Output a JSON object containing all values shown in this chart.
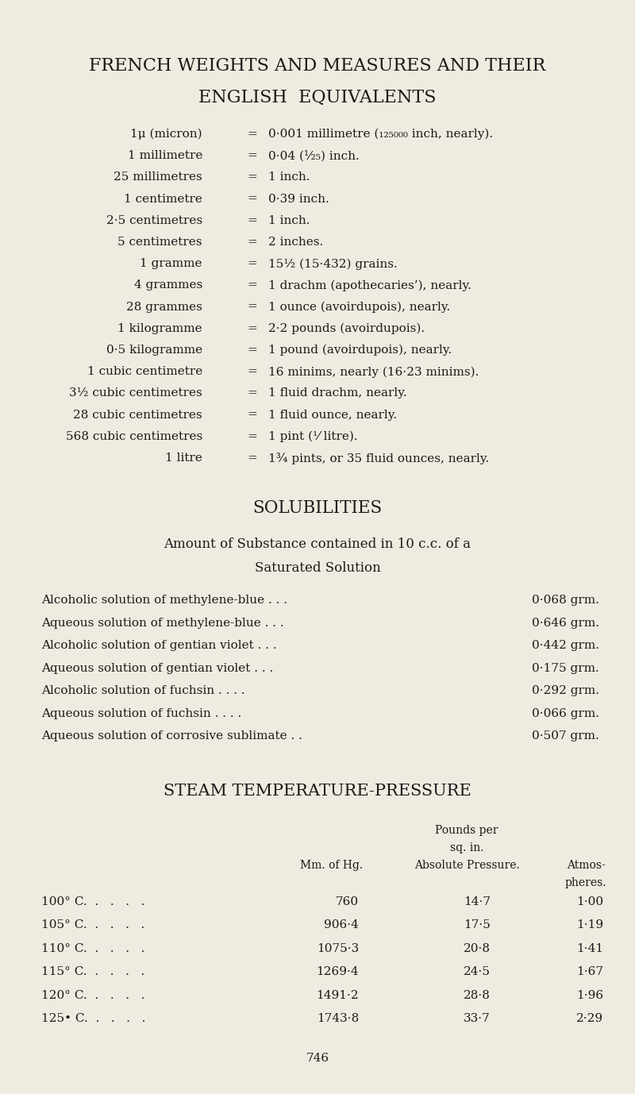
{
  "bg_color": "#f0ebe0",
  "text_color": "#1a1a1a",
  "title1": "FRENCH WEIGHTS AND MEASURES AND THEIR",
  "title2": "ENGLISH  EQUIVALENTS",
  "measures": [
    [
      "1μ (micron)",
      "0·001 millimetre (₁₂₅₀₀₀ inch, nearly)."
    ],
    [
      "1 millimetre",
      "0·04 (¹⁄₂₅) inch."
    ],
    [
      "25 millimetres",
      "1 inch."
    ],
    [
      "1 centimetre",
      "0·39 inch."
    ],
    [
      "2·5 centimetres",
      "1 inch."
    ],
    [
      "5 centimetres",
      "2 inches."
    ],
    [
      "1 gramme",
      "15½ (15·432) grains."
    ],
    [
      "4 grammes",
      "1 drachm (apothecaries’), nearly."
    ],
    [
      "28 grammes",
      "1 ounce (avoirdupois), nearly."
    ],
    [
      "1 kilogramme",
      "2·2 pounds (avoirdupois)."
    ],
    [
      "0·5 kilogramme",
      "1 pound (avoirdupois), nearly."
    ],
    [
      "1 cubic centimetre",
      "16 minims, nearly (16·23 minims)."
    ],
    [
      "3½ cubic centimetres",
      "1 fluid drachm, nearly."
    ],
    [
      "28 cubic centimetres",
      "1 fluid ounce, nearly."
    ],
    [
      "568 cubic centimetres",
      "1 pint (⅟ litre)."
    ],
    [
      "1 litre",
      "1¾ pints, or 35 fluid ounces, nearly."
    ]
  ],
  "solubilities_title": "SOLUBILITIES",
  "solubilities_subtitle1": "Amount of Substance contained in 10 c.c. of a",
  "solubilities_subtitle2": "Saturated Solution",
  "solubilities": [
    [
      "Alcoholic solution of methylene-blue . . .",
      "0·068 grm."
    ],
    [
      "Aqueous solution of methylene-blue . . .",
      "0·646 grm."
    ],
    [
      "Alcoholic solution of gentian violet . . .",
      "0·442 grm."
    ],
    [
      "Aqueous solution of gentian violet . . .",
      "0·175 grm."
    ],
    [
      "Alcoholic solution of fuchsin . . . .",
      "0·292 grm."
    ],
    [
      "Aqueous solution of fuchsin . . . .",
      "0·066 grm."
    ],
    [
      "Aqueous solution of corrosive sublimate . .",
      "0·507 grm."
    ]
  ],
  "steam_title": "STEAM TEMPERATURE-PRESSURE",
  "steam_rows": [
    [
      "100° C.",
      "760",
      "14·7",
      "1·00"
    ],
    [
      "105° C.",
      "906·4",
      "17·5",
      "1·19"
    ],
    [
      "110° C.",
      "1075·3",
      "20·8",
      "1·41"
    ],
    [
      "115° C.",
      "1269·4",
      "24·5",
      "1·67"
    ],
    [
      "120° C.",
      "1491·2",
      "28·8",
      "1·96"
    ],
    [
      "125• C.",
      "1743·8",
      "33·7",
      "2·29"
    ]
  ],
  "page_number": "746",
  "fig_width": 8.0,
  "fig_height": 13.78,
  "dpi": 100
}
